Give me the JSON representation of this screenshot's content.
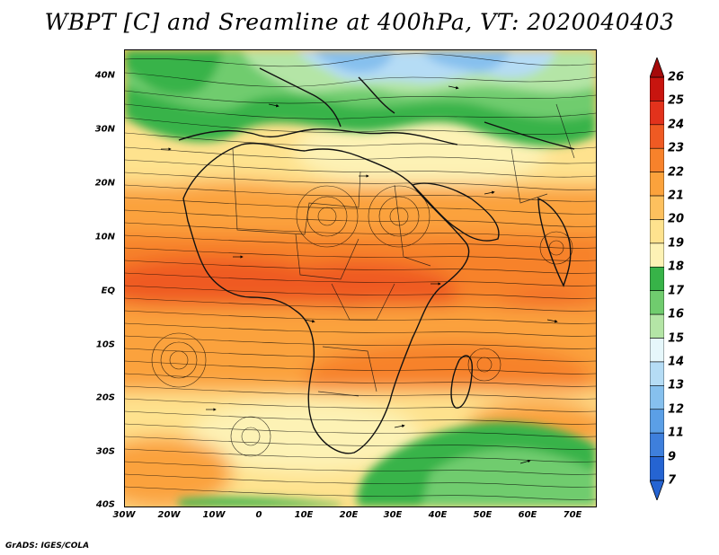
{
  "title": "WBPT [C] and Sreamline at 400hPa, VT: 2020040403",
  "credit": "GrADS: IGES/COLA",
  "lat_labels": [
    "40N",
    "30N",
    "20N",
    "10N",
    "EQ",
    "10S",
    "20S",
    "30S",
    "40S"
  ],
  "lon_labels": [
    "30W",
    "20W",
    "10W",
    "0",
    "10E",
    "20E",
    "30E",
    "40E",
    "50E",
    "60E",
    "70E"
  ],
  "colorbar": {
    "levels": [
      {
        "label": "26",
        "color": "#a50a0a"
      },
      {
        "label": "25",
        "color": "#c8150f"
      },
      {
        "label": "24",
        "color": "#e2321c"
      },
      {
        "label": "23",
        "color": "#ef5a23"
      },
      {
        "label": "22",
        "color": "#f7822b"
      },
      {
        "label": "21",
        "color": "#fba23c"
      },
      {
        "label": "20",
        "color": "#fdc05e"
      },
      {
        "label": "19",
        "color": "#fee28e"
      },
      {
        "label": "18",
        "color": "#fdf2b5"
      },
      {
        "label": "17",
        "color": "#37b348"
      },
      {
        "label": "16",
        "color": "#70cc6e"
      },
      {
        "label": "15",
        "color": "#b4e5a6"
      },
      {
        "label": "14",
        "color": "#e6f7fb"
      },
      {
        "label": "13",
        "color": "#b5dcf5"
      },
      {
        "label": "12",
        "color": "#86c0ee"
      },
      {
        "label": "11",
        "color": "#5b9fe6"
      },
      {
        "label": "9",
        "color": "#3e7fdc"
      },
      {
        "label": "7",
        "color": "#2564d2"
      }
    ]
  }
}
